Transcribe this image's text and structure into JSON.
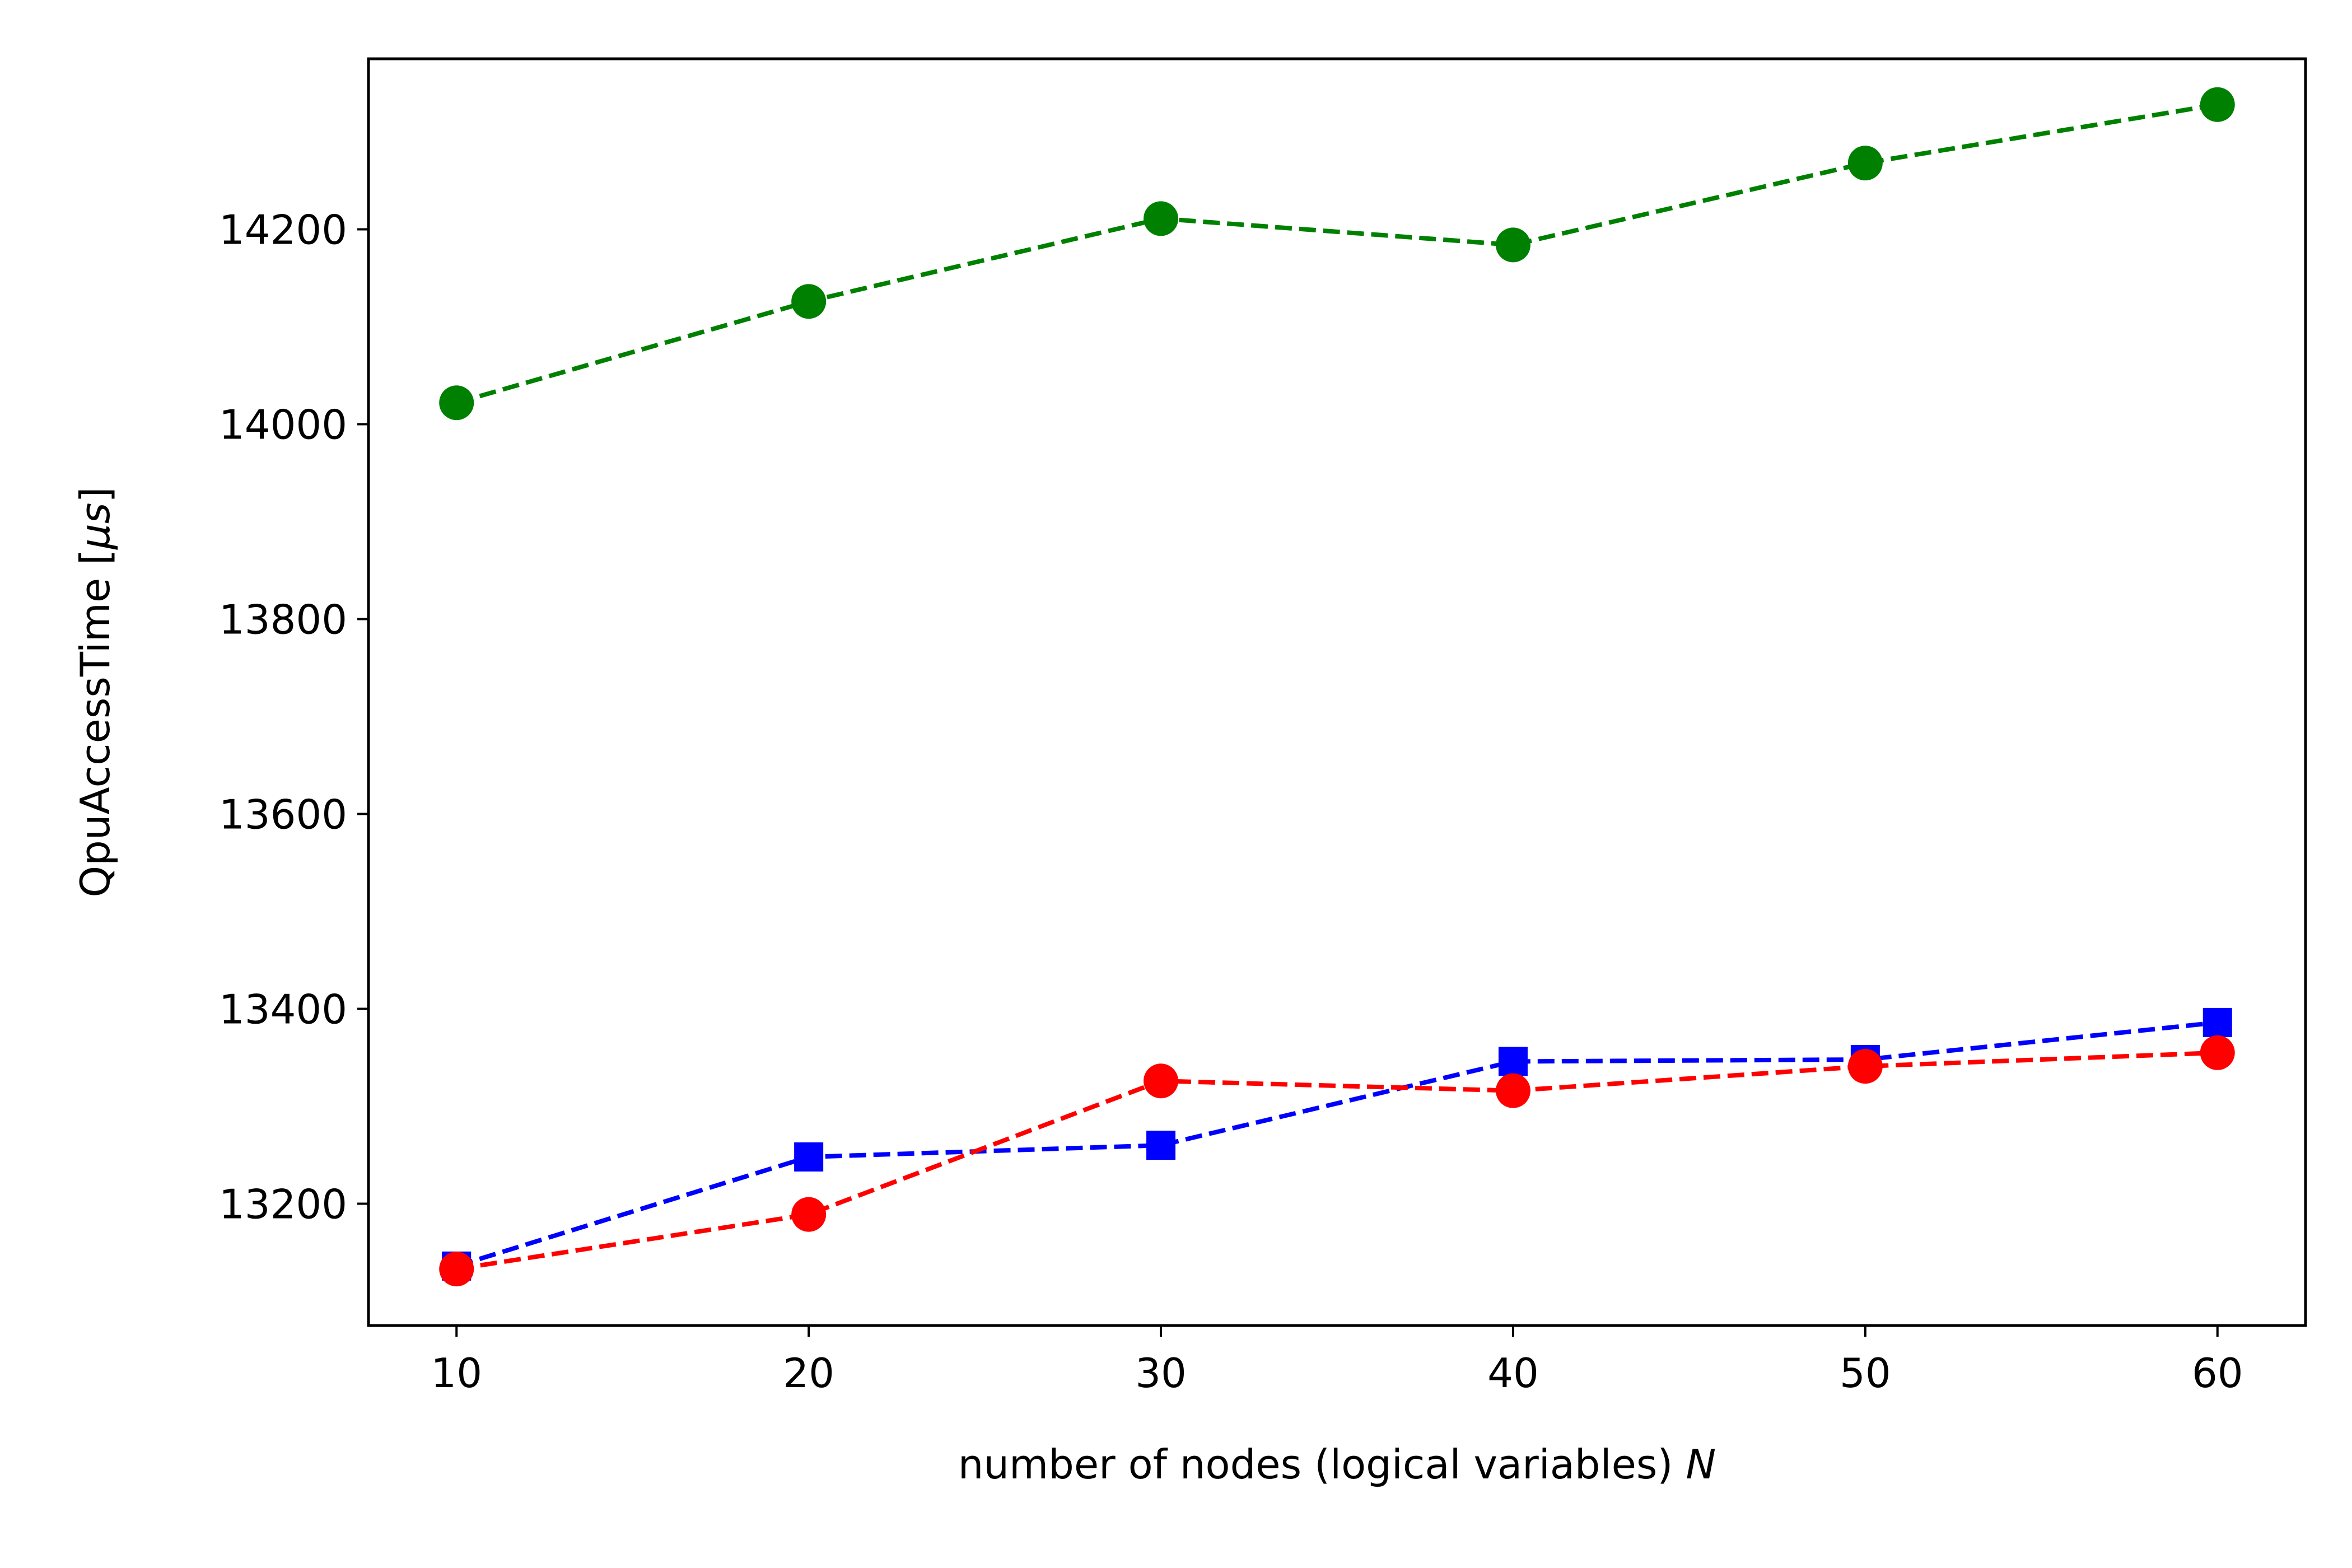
{
  "chart_data": {
    "type": "line",
    "title": "",
    "xlabel": "number of nodes (logical variables) ",
    "xlabel_var": "N",
    "ylabel": "QpuAccessTime [",
    "ylabel_unit": "μs",
    "ylabel_close": "]",
    "xlim": [
      7.5,
      62.5
    ],
    "ylim": [
      13075,
      14375
    ],
    "x_ticks": [
      10,
      20,
      30,
      40,
      50,
      60
    ],
    "y_ticks": [
      13200,
      13400,
      13600,
      13800,
      14000,
      14200
    ],
    "x": [
      10,
      20,
      30,
      40,
      50,
      60
    ],
    "grid": false,
    "series": [
      {
        "color": "#008000",
        "marker": "circle",
        "linestyle": "dashed",
        "values": [
          14022,
          14126,
          14211,
          14184,
          14268,
          14328
        ]
      },
      {
        "color": "#0000ff",
        "marker": "square",
        "linestyle": "dashed",
        "values": [
          13136,
          13248,
          13260,
          13346,
          13348,
          13386
        ]
      },
      {
        "color": "#ff0000",
        "marker": "circle",
        "linestyle": "dashed",
        "values": [
          13133,
          13189,
          13326,
          13316,
          13341,
          13355
        ]
      }
    ]
  }
}
